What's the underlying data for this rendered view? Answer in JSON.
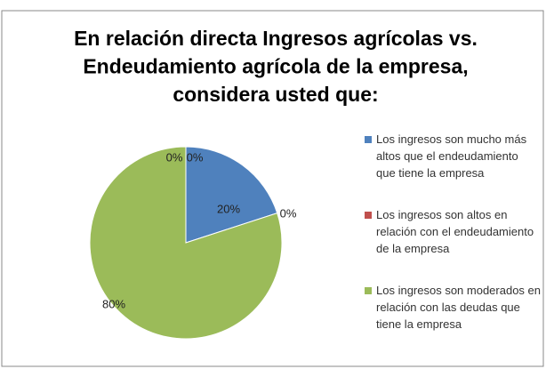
{
  "chart_data": {
    "type": "pie",
    "title": [
      "En relación directa Ingresos  agrícolas vs.",
      "Endeudamiento agrícola de la empresa,",
      "considera usted que:"
    ],
    "categories": [
      "Los ingresos son mucho más altos que el  endeudamiento que tiene la empresa",
      "Los ingresos son altos en relación con el endeudamiento de la empresa",
      "Los ingresos son moderados en relación con las deudas que tiene la empresa",
      null,
      null
    ],
    "values": [
      20,
      0,
      80,
      0,
      0
    ],
    "value_labels": [
      "20%",
      "0%",
      "80%",
      "0%",
      "0%"
    ],
    "colors": [
      "#4f81bd",
      "#c0504d",
      "#9bbb59",
      "#8064a2",
      "#4bacc6"
    ],
    "legend": "right"
  }
}
